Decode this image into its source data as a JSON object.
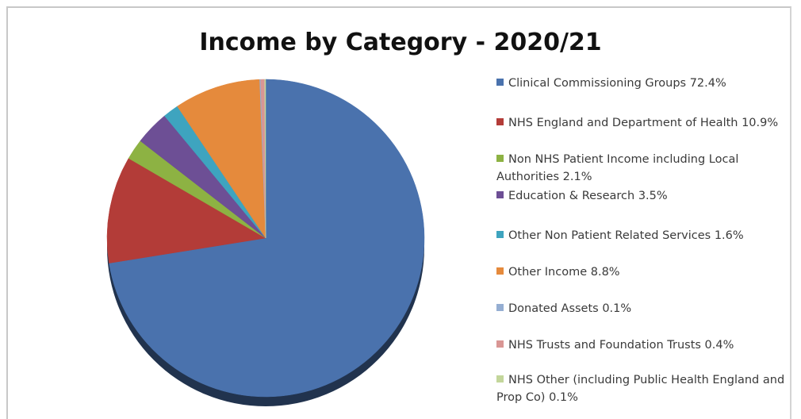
{
  "chart_data": {
    "type": "pie",
    "title": "Income by Category - 2020/21",
    "slices": [
      {
        "label": "Clinical Commissioning Groups 72.4%",
        "value": 72.4,
        "color": "#4a72ad"
      },
      {
        "label": "NHS England and Department of Health 10.9%",
        "value": 10.9,
        "color": "#b33c38"
      },
      {
        "label": "Non NHS Patient Income including Local Authorities 2.1%",
        "value": 2.1,
        "color": "#8db243"
      },
      {
        "label": "Education & Research 3.5%",
        "value": 3.5,
        "color": "#6d4f95"
      },
      {
        "label": "Other Non Patient Related Services 1.6%",
        "value": 1.6,
        "color": "#3ea4bf"
      },
      {
        "label": "Other Income 8.8%",
        "value": 8.8,
        "color": "#e58a3c"
      },
      {
        "label": "Donated Assets 0.1%",
        "value": 0.1,
        "color": "#95aed2"
      },
      {
        "label": "NHS Trusts and Foundation Trusts 0.4%",
        "value": 0.4,
        "color": "#d99694"
      },
      {
        "label": "NHS Other (including Public Health England and Prop Co) 0.1%",
        "value": 0.1,
        "color": "#c3d69b"
      }
    ],
    "legend_position": "right"
  }
}
